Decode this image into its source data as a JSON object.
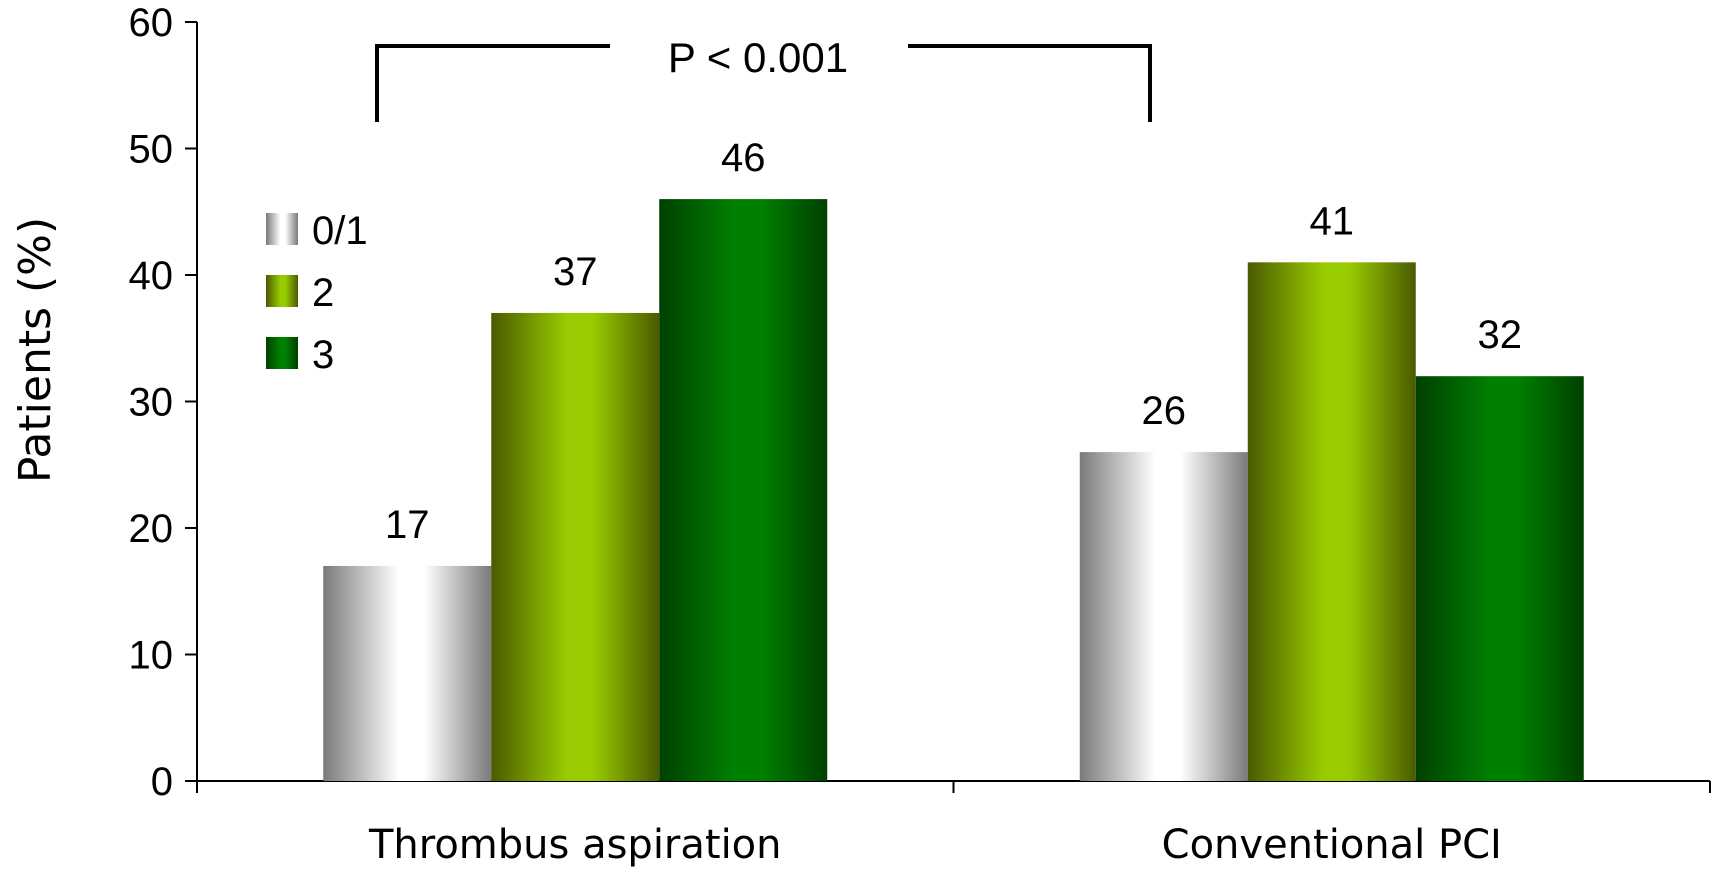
{
  "chart_data": {
    "type": "bar",
    "categories": [
      "Thrombus aspiration",
      "Conventional PCI"
    ],
    "series": [
      {
        "name": "0/1",
        "values": [
          17,
          26
        ]
      },
      {
        "name": "2",
        "values": [
          37,
          41
        ]
      },
      {
        "name": "3",
        "values": [
          46,
          32
        ]
      }
    ],
    "data_labels": [
      [
        "17",
        "37",
        "46"
      ],
      [
        "26",
        "41",
        "32"
      ]
    ],
    "title": "",
    "xlabel": "",
    "ylabel": "Patients (%)",
    "ylim": [
      0,
      60
    ],
    "yticks": [
      0,
      10,
      20,
      30,
      40,
      50,
      60
    ],
    "grid": false,
    "legend_position": "upper-left",
    "annotation": {
      "text": "P < 0.001"
    },
    "colors": {
      "series_0_edge": "#7a7a7a",
      "series_0_center": "#ffffff",
      "series_1_edge": "#4a5a00",
      "series_1_center": "#99cc00",
      "series_2_edge": "#004000",
      "series_2_center": "#008000",
      "axis": "#000000"
    }
  }
}
